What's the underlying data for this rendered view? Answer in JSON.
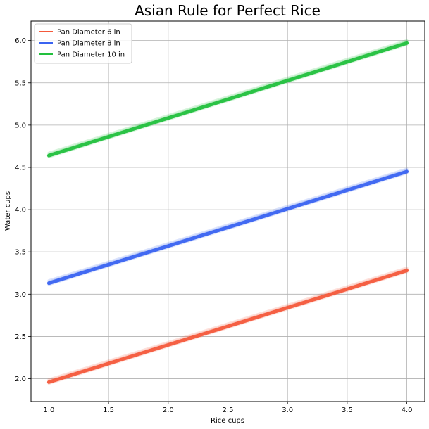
{
  "chart_data": {
    "type": "line",
    "title": "Asian Rule for Perfect Rice",
    "xlabel": "Rice cups",
    "ylabel": "Water cups",
    "x": [
      1.0,
      4.0
    ],
    "xlim": [
      0.85,
      4.15
    ],
    "ylim": [
      1.73,
      6.23
    ],
    "xticks": [
      1.0,
      1.5,
      2.0,
      2.5,
      3.0,
      3.5,
      4.0
    ],
    "xtick_labels": [
      "1.0",
      "1.5",
      "2.0",
      "2.5",
      "3.0",
      "3.5",
      "4.0"
    ],
    "yticks": [
      2.0,
      2.5,
      3.0,
      3.5,
      4.0,
      4.5,
      5.0,
      5.5,
      6.0
    ],
    "ytick_labels": [
      "2.0",
      "2.5",
      "3.0",
      "3.5",
      "4.0",
      "4.5",
      "5.0",
      "5.5",
      "6.0"
    ],
    "grid": true,
    "legend_position": "top-left",
    "series": [
      {
        "name": "Pan Diameter 6 in",
        "values": [
          1.96,
          3.28
        ],
        "color": "#f4593b"
      },
      {
        "name": "Pan Diameter 8 in",
        "values": [
          3.13,
          4.45
        ],
        "color": "#3a63f1"
      },
      {
        "name": "Pan Diameter 10 in",
        "values": [
          4.64,
          5.97
        ],
        "color": "#22c03d"
      }
    ]
  }
}
